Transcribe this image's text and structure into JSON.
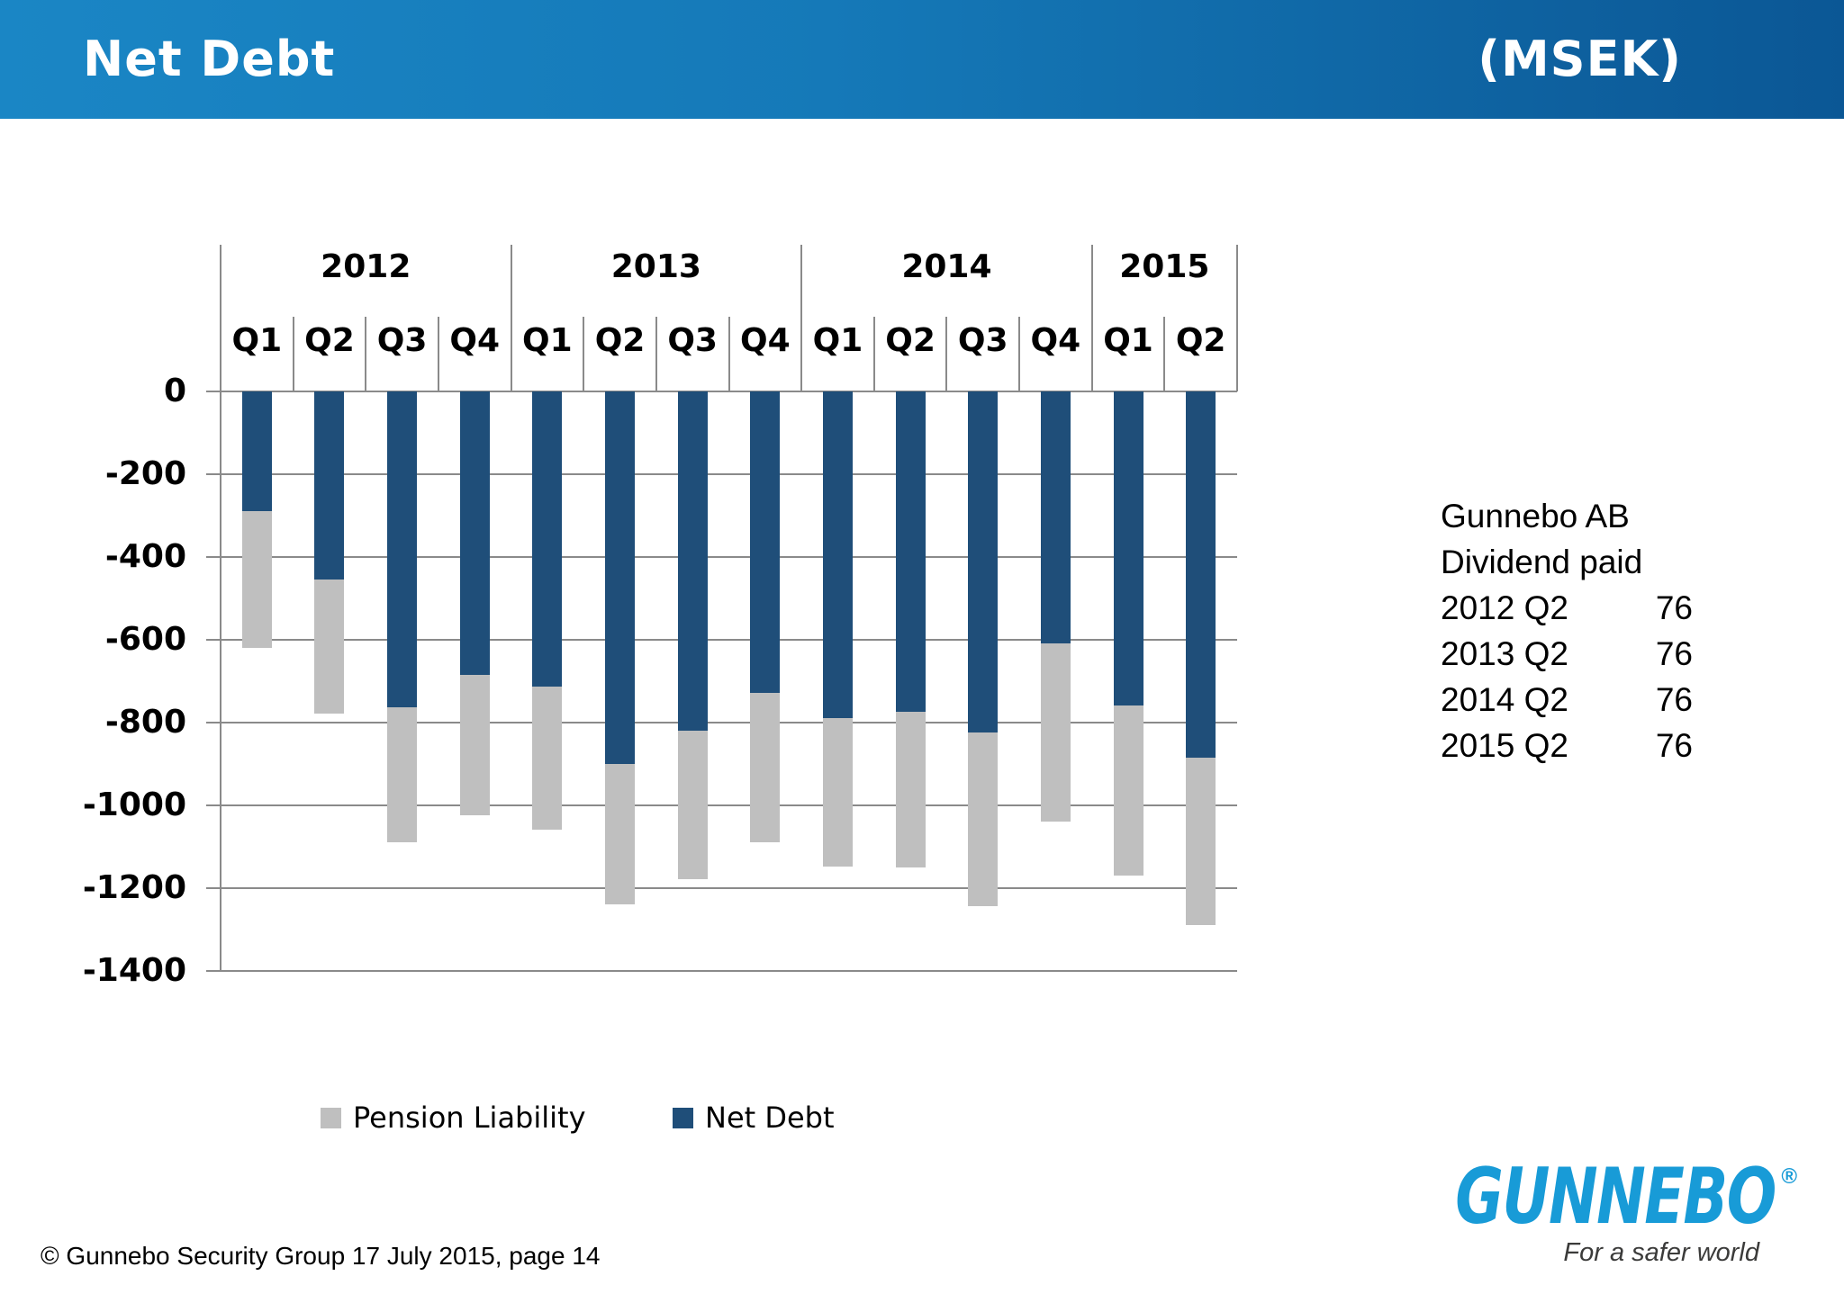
{
  "header": {
    "title": "Net Debt",
    "unit": "(MSEK)",
    "gradient_left": "#1a86c5",
    "gradient_right": "#0b5795",
    "text_color": "#ffffff"
  },
  "chart_data": {
    "type": "bar",
    "stacked": true,
    "title": "Net Debt (MSEK)",
    "groups": [
      {
        "year": "2012",
        "quarters": [
          "Q1",
          "Q2",
          "Q3",
          "Q4"
        ]
      },
      {
        "year": "2013",
        "quarters": [
          "Q1",
          "Q2",
          "Q3",
          "Q4"
        ]
      },
      {
        "year": "2014",
        "quarters": [
          "Q1",
          "Q2",
          "Q3",
          "Q4"
        ]
      },
      {
        "year": "2015",
        "quarters": [
          "Q1",
          "Q2"
        ]
      }
    ],
    "categories": [
      "2012 Q1",
      "2012 Q2",
      "2012 Q3",
      "2012 Q4",
      "2013 Q1",
      "2013 Q2",
      "2013 Q3",
      "2013 Q4",
      "2014 Q1",
      "2014 Q2",
      "2014 Q3",
      "2014 Q4",
      "2015 Q1",
      "2015 Q2"
    ],
    "series": [
      {
        "name": "Net Debt",
        "color": "#1f4e79",
        "values": [
          -290,
          -455,
          -765,
          -685,
          -715,
          -900,
          -820,
          -730,
          -790,
          -775,
          -825,
          -610,
          -760,
          -885
        ]
      },
      {
        "name": "Pension Liability",
        "color": "#bfbfbf",
        "values": [
          -330,
          -325,
          -325,
          -340,
          -345,
          -340,
          -360,
          -360,
          -360,
          -375,
          -420,
          -430,
          -410,
          -405
        ]
      }
    ],
    "stack_totals": [
      -620,
      -780,
      -1090,
      -1025,
      -1060,
      -1240,
      -1180,
      -1090,
      -1150,
      -1150,
      -1245,
      -1040,
      -1170,
      -1290
    ],
    "ylim": [
      -1400,
      0
    ],
    "yticks": [
      0,
      -200,
      -400,
      -600,
      -800,
      -1000,
      -1200,
      -1400
    ],
    "ytick_labels": [
      "0",
      "-200",
      "-400",
      "-600",
      "-800",
      "-1000",
      "-1200",
      "-1400"
    ],
    "grid": true,
    "gridline_color": "#8a8a8a",
    "legend_position": "bottom"
  },
  "legend": {
    "items": [
      {
        "label": "Pension Liability",
        "color": "#bfbfbf"
      },
      {
        "label": "Net Debt",
        "color": "#1f4e79"
      }
    ]
  },
  "side_panel": {
    "line1": "Gunnebo AB",
    "line2": "Dividend paid",
    "rows": [
      {
        "period": "2012 Q2",
        "value": "76"
      },
      {
        "period": "2013 Q2",
        "value": "76"
      },
      {
        "period": "2014 Q2",
        "value": "76"
      },
      {
        "period": "2015 Q2",
        "value": "76"
      }
    ]
  },
  "footer": {
    "text": "© Gunnebo Security Group 17 July 2015, page 14"
  },
  "logo": {
    "brand": "GUNNEBO",
    "registered": "®",
    "tagline": "For a safer world",
    "brand_color": "#189bd7",
    "tagline_color": "#3b3b3a"
  }
}
